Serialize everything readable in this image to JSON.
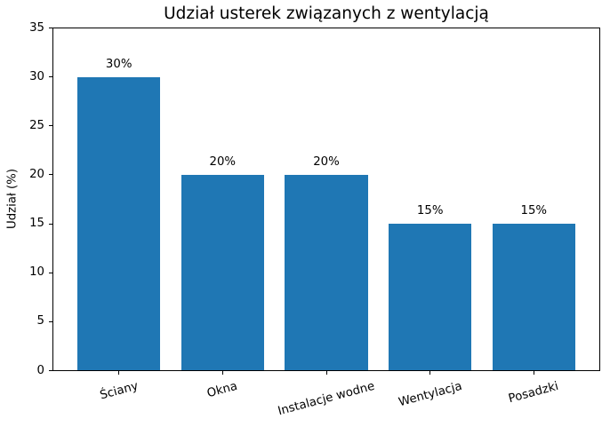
{
  "chart_data": {
    "type": "bar",
    "title": "Udział usterek związanych z wentylacją",
    "xlabel": "",
    "ylabel": "Udział (%)",
    "categories": [
      "Ściany",
      "Okna",
      "Instalacje wodne",
      "Wentylacja",
      "Posadzki"
    ],
    "values": [
      30,
      20,
      20,
      15,
      15
    ],
    "bar_labels": [
      "30%",
      "20%",
      "20%",
      "15%",
      "15%"
    ],
    "ylim": [
      0,
      35
    ],
    "yticks": [
      0,
      5,
      10,
      15,
      20,
      25,
      30,
      35
    ],
    "xtick_rotation_deg": 15,
    "bar_color": "#1f77b4",
    "axis_color": "#000000",
    "text_color": "#000000",
    "background_color": "#ffffff",
    "grid": false,
    "legend": null
  }
}
